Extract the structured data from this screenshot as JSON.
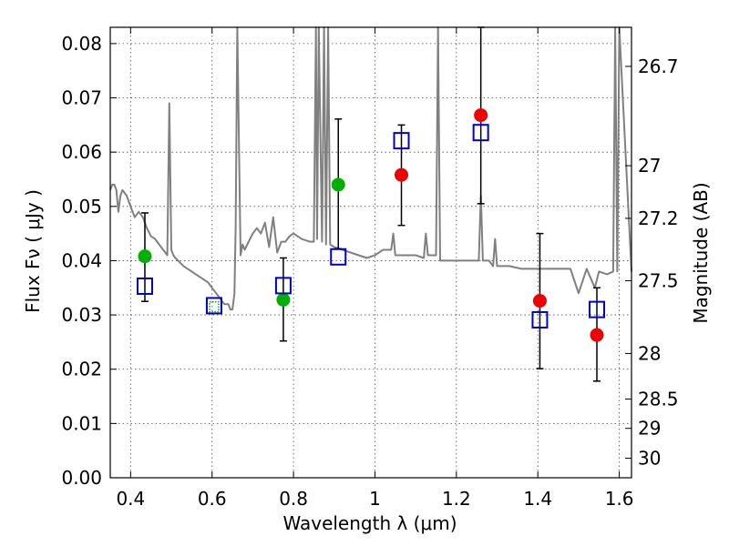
{
  "chart_data": {
    "type": "scatter",
    "xlabel": "Wavelength  λ (μm)",
    "ylabel": "Flux  Fν  ( μJy )",
    "y2label": "Magnitude (AB)",
    "xlim": [
      0.35,
      1.63
    ],
    "ylim": [
      0.0,
      0.083
    ],
    "grid": true,
    "x_ticks": [
      0.4,
      0.6,
      0.8,
      1.0,
      1.2,
      1.4,
      1.6
    ],
    "x_tick_labels": [
      "0.4",
      "0.6",
      "0.8",
      "1",
      "1.2",
      "1.4",
      "1.6"
    ],
    "y_ticks": [
      0.0,
      0.01,
      0.02,
      0.03,
      0.04,
      0.05,
      0.06,
      0.07,
      0.08
    ],
    "y_tick_labels": [
      "0.00",
      "0.01",
      "0.02",
      "0.03",
      "0.04",
      "0.05",
      "0.06",
      "0.07",
      "0.08"
    ],
    "y2_ticks": [
      {
        "label": "26.7",
        "flux": 0.0758
      },
      {
        "label": "27",
        "flux": 0.0575
      },
      {
        "label": "27.2",
        "flux": 0.0478
      },
      {
        "label": "27.5",
        "flux": 0.0363
      },
      {
        "label": "28",
        "flux": 0.0229
      },
      {
        "label": "28.5",
        "flux": 0.0145
      },
      {
        "label": "29",
        "flux": 0.0091
      },
      {
        "label": "30",
        "flux": 0.0036
      }
    ],
    "series": [
      {
        "kind": "line",
        "color": "#808080",
        "x": [
          0.35,
          0.355,
          0.36,
          0.365,
          0.37,
          0.375,
          0.38,
          0.39,
          0.4,
          0.41,
          0.42,
          0.43,
          0.44,
          0.45,
          0.46,
          0.47,
          0.48,
          0.49,
          0.495,
          0.5,
          0.505,
          0.51,
          0.53,
          0.55,
          0.57,
          0.59,
          0.6,
          0.61,
          0.62,
          0.63,
          0.64,
          0.645,
          0.65,
          0.655,
          0.658,
          0.662,
          0.67,
          0.675,
          0.68,
          0.69,
          0.7,
          0.71,
          0.72,
          0.73,
          0.74,
          0.75,
          0.76,
          0.77,
          0.78,
          0.79,
          0.8,
          0.82,
          0.84,
          0.85,
          0.855,
          0.858,
          0.862,
          0.87,
          0.875,
          0.88,
          0.885,
          0.89,
          0.9,
          0.92,
          0.94,
          0.96,
          0.98,
          1.0,
          1.02,
          1.04,
          1.045,
          1.05,
          1.08,
          1.1,
          1.12,
          1.125,
          1.13,
          1.15,
          1.155,
          1.16,
          1.18,
          1.2,
          1.22,
          1.24,
          1.255,
          1.26,
          1.265,
          1.28,
          1.29,
          1.295,
          1.3,
          1.33,
          1.36,
          1.4,
          1.44,
          1.48,
          1.5,
          1.52,
          1.54,
          1.55,
          1.57,
          1.585,
          1.59,
          1.595,
          1.6,
          1.63
        ],
        "y": [
          0.053,
          0.054,
          0.054,
          0.053,
          0.049,
          0.052,
          0.053,
          0.052,
          0.05,
          0.048,
          0.049,
          0.048,
          0.046,
          0.0445,
          0.044,
          0.043,
          0.042,
          0.041,
          0.069,
          0.042,
          0.041,
          0.0405,
          0.039,
          0.038,
          0.037,
          0.036,
          0.035,
          0.034,
          0.033,
          0.032,
          0.032,
          0.031,
          0.031,
          0.034,
          0.046,
          0.083,
          0.041,
          0.043,
          0.042,
          0.0435,
          0.045,
          0.046,
          0.045,
          0.047,
          0.0425,
          0.048,
          0.0415,
          0.0435,
          0.0435,
          0.0445,
          0.045,
          0.044,
          0.0435,
          0.0435,
          0.083,
          0.044,
          0.083,
          0.0435,
          0.083,
          0.043,
          0.083,
          0.043,
          0.0425,
          0.042,
          0.0415,
          0.041,
          0.0405,
          0.041,
          0.042,
          0.042,
          0.045,
          0.041,
          0.041,
          0.041,
          0.0405,
          0.045,
          0.041,
          0.041,
          0.083,
          0.04,
          0.04,
          0.04,
          0.04,
          0.04,
          0.04,
          0.052,
          0.04,
          0.04,
          0.039,
          0.044,
          0.039,
          0.039,
          0.0385,
          0.0385,
          0.0385,
          0.0385,
          0.034,
          0.0385,
          0.035,
          0.038,
          0.0375,
          0.038,
          0.083,
          0.038,
          0.083,
          0.038
        ]
      },
      {
        "kind": "errorbar",
        "color": "#000000",
        "points": [
          {
            "x": 0.435,
            "y": 0.0408,
            "ylo": 0.0325,
            "yhi": 0.0488
          },
          {
            "x": 0.775,
            "y": 0.0328,
            "ylo": 0.0252,
            "yhi": 0.0405
          },
          {
            "x": 0.91,
            "y": 0.054,
            "ylo": 0.0422,
            "yhi": 0.0661
          },
          {
            "x": 1.065,
            "y": 0.0558,
            "ylo": 0.0465,
            "yhi": 0.065
          },
          {
            "x": 1.26,
            "y": 0.0668,
            "ylo": 0.0505,
            "yhi": 0.083
          },
          {
            "x": 1.405,
            "y": 0.0326,
            "ylo": 0.0201,
            "yhi": 0.045
          },
          {
            "x": 1.545,
            "y": 0.0263,
            "ylo": 0.0178,
            "yhi": 0.035
          }
        ]
      },
      {
        "kind": "marker-circle",
        "color": "#00b000",
        "x": [
          0.435,
          0.775,
          0.91
        ],
        "y": [
          0.0408,
          0.0328,
          0.054
        ]
      },
      {
        "kind": "marker-circle",
        "color": "#ee0000",
        "x": [
          1.065,
          1.26,
          1.405,
          1.545
        ],
        "y": [
          0.0558,
          0.0668,
          0.0326,
          0.0263
        ]
      },
      {
        "kind": "marker-square",
        "color": "#0000cc",
        "x": [
          0.435,
          0.605,
          0.775,
          0.91,
          1.065,
          1.26,
          1.405,
          1.545
        ],
        "y": [
          0.0353,
          0.0317,
          0.0354,
          0.0407,
          0.0621,
          0.0636,
          0.0291,
          0.031
        ]
      },
      {
        "kind": "marker-square-small",
        "color": "#00b000",
        "x": [
          0.605
        ],
        "y": [
          0.0315
        ]
      }
    ]
  }
}
